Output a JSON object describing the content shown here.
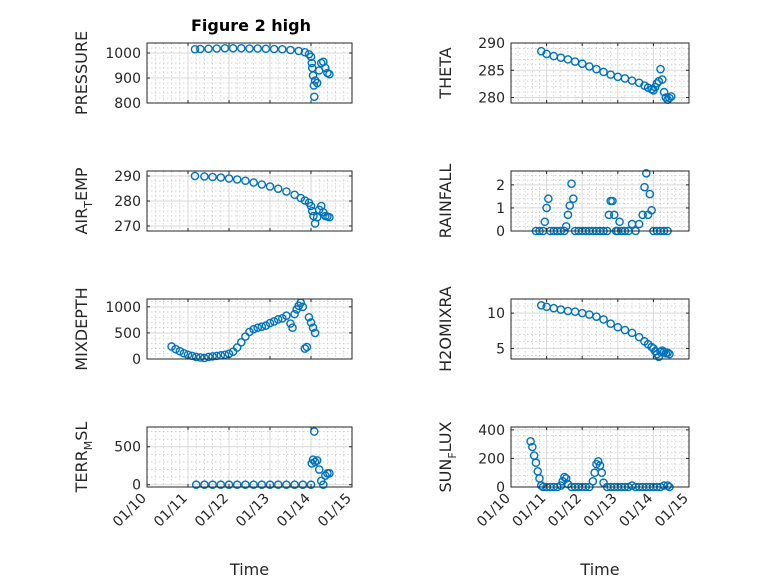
{
  "figure": {
    "title": "Figure 2 high",
    "marker_color": "#0072bd",
    "x_axis_label": "Time"
  },
  "chart_data": [
    {
      "type": "scatter",
      "id": "pressure",
      "ylabel": "PRESSURE",
      "xlim": [
        0,
        5
      ],
      "ylim": [
        800,
        1040
      ],
      "yticks": [
        800,
        900,
        1000
      ],
      "xticks": [
        "01/10",
        "01/11",
        "01/12",
        "01/13",
        "01/14",
        "01/15"
      ],
      "x_tick_labels_shown": false,
      "points": [
        [
          1.17,
          1015
        ],
        [
          1.3,
          1016
        ],
        [
          1.5,
          1017
        ],
        [
          1.7,
          1018
        ],
        [
          1.9,
          1019
        ],
        [
          2.1,
          1019
        ],
        [
          2.3,
          1019
        ],
        [
          2.5,
          1018
        ],
        [
          2.7,
          1018
        ],
        [
          2.9,
          1017
        ],
        [
          3.1,
          1016
        ],
        [
          3.3,
          1015
        ],
        [
          3.5,
          1012
        ],
        [
          3.7,
          1008
        ],
        [
          3.85,
          1003
        ],
        [
          3.95,
          995
        ],
        [
          4.0,
          985
        ],
        [
          4.02,
          960
        ],
        [
          4.03,
          940
        ],
        [
          4.05,
          910
        ],
        [
          4.07,
          870
        ],
        [
          4.08,
          825
        ],
        [
          4.1,
          890
        ],
        [
          4.15,
          880
        ],
        [
          4.2,
          930
        ],
        [
          4.25,
          960
        ],
        [
          4.3,
          965
        ],
        [
          4.35,
          940
        ],
        [
          4.4,
          920
        ],
        [
          4.45,
          915
        ]
      ]
    },
    {
      "type": "scatter",
      "id": "theta",
      "ylabel": "THETA",
      "xlim": [
        0,
        5
      ],
      "ylim": [
        279,
        290
      ],
      "yticks": [
        280,
        285,
        290
      ],
      "xticks": [
        "01/10",
        "01/11",
        "01/12",
        "01/13",
        "01/14",
        "01/15"
      ],
      "x_tick_labels_shown": false,
      "points": [
        [
          0.85,
          288.5
        ],
        [
          1.0,
          288.0
        ],
        [
          1.2,
          287.6
        ],
        [
          1.4,
          287.3
        ],
        [
          1.6,
          287.0
        ],
        [
          1.8,
          286.6
        ],
        [
          2.0,
          286.2
        ],
        [
          2.2,
          285.7
        ],
        [
          2.4,
          285.2
        ],
        [
          2.6,
          284.7
        ],
        [
          2.8,
          284.2
        ],
        [
          3.0,
          283.8
        ],
        [
          3.2,
          283.5
        ],
        [
          3.4,
          283.1
        ],
        [
          3.6,
          282.7
        ],
        [
          3.75,
          282.2
        ],
        [
          3.85,
          281.8
        ],
        [
          3.95,
          281.5
        ],
        [
          4.0,
          281.3
        ],
        [
          4.05,
          281.9
        ],
        [
          4.1,
          282.6
        ],
        [
          4.15,
          283.0
        ],
        [
          4.2,
          285.2
        ],
        [
          4.25,
          283.3
        ],
        [
          4.3,
          281.0
        ],
        [
          4.35,
          280.0
        ],
        [
          4.4,
          279.6
        ],
        [
          4.45,
          279.9
        ],
        [
          4.5,
          280.2
        ]
      ]
    },
    {
      "type": "scatter",
      "id": "air_temp",
      "ylabel": "AIR_TEMP",
      "ylabel_main": "AIR",
      "ylabel_sub": "T",
      "ylabel_rest": "EMP",
      "xlim": [
        0,
        5
      ],
      "ylim": [
        268,
        292
      ],
      "yticks": [
        270,
        280,
        290
      ],
      "xticks": [
        "01/10",
        "01/11",
        "01/12",
        "01/13",
        "01/14",
        "01/15"
      ],
      "x_tick_labels_shown": false,
      "points": [
        [
          1.17,
          290.0
        ],
        [
          1.4,
          289.8
        ],
        [
          1.6,
          289.6
        ],
        [
          1.8,
          289.4
        ],
        [
          2.0,
          289.0
        ],
        [
          2.2,
          288.6
        ],
        [
          2.4,
          288.1
        ],
        [
          2.6,
          287.4
        ],
        [
          2.8,
          286.6
        ],
        [
          3.0,
          285.8
        ],
        [
          3.2,
          284.9
        ],
        [
          3.4,
          283.8
        ],
        [
          3.6,
          282.5
        ],
        [
          3.75,
          281.2
        ],
        [
          3.85,
          280.2
        ],
        [
          3.95,
          279.3
        ],
        [
          4.0,
          278.0
        ],
        [
          4.03,
          276.0
        ],
        [
          4.06,
          274.0
        ],
        [
          4.1,
          271.0
        ],
        [
          4.15,
          273.5
        ],
        [
          4.2,
          276.5
        ],
        [
          4.25,
          278.0
        ],
        [
          4.3,
          275.5
        ],
        [
          4.35,
          274.0
        ],
        [
          4.4,
          273.8
        ],
        [
          4.45,
          273.5
        ]
      ]
    },
    {
      "type": "scatter",
      "id": "rainfall",
      "ylabel": "RAINFALL",
      "xlim": [
        0,
        5
      ],
      "ylim": [
        0,
        2.6
      ],
      "yticks": [
        0,
        1,
        2
      ],
      "xticks": [
        "01/10",
        "01/11",
        "01/12",
        "01/13",
        "01/14",
        "01/15"
      ],
      "x_tick_labels_shown": false,
      "points": [
        [
          0.7,
          0
        ],
        [
          0.8,
          0
        ],
        [
          0.9,
          0
        ],
        [
          0.95,
          0.4
        ],
        [
          1.0,
          1.0
        ],
        [
          1.05,
          1.4
        ],
        [
          1.1,
          0
        ],
        [
          1.2,
          0
        ],
        [
          1.3,
          0
        ],
        [
          1.4,
          0
        ],
        [
          1.5,
          0
        ],
        [
          1.55,
          0.2
        ],
        [
          1.6,
          0.7
        ],
        [
          1.65,
          1.1
        ],
        [
          1.7,
          2.05
        ],
        [
          1.75,
          1.4
        ],
        [
          1.8,
          0
        ],
        [
          1.9,
          0
        ],
        [
          2.0,
          0
        ],
        [
          2.1,
          0
        ],
        [
          2.2,
          0
        ],
        [
          2.3,
          0
        ],
        [
          2.4,
          0
        ],
        [
          2.5,
          0
        ],
        [
          2.6,
          0
        ],
        [
          2.7,
          0
        ],
        [
          2.75,
          0.7
        ],
        [
          2.8,
          1.3
        ],
        [
          2.85,
          1.3
        ],
        [
          2.9,
          0.7
        ],
        [
          2.95,
          0
        ],
        [
          3.0,
          0
        ],
        [
          3.05,
          0.4
        ],
        [
          3.1,
          0
        ],
        [
          3.2,
          0
        ],
        [
          3.3,
          0
        ],
        [
          3.4,
          0.3
        ],
        [
          3.5,
          0
        ],
        [
          3.6,
          0.3
        ],
        [
          3.7,
          0.7
        ],
        [
          3.75,
          1.9
        ],
        [
          3.8,
          2.5
        ],
        [
          3.85,
          0.7
        ],
        [
          3.9,
          1.6
        ],
        [
          3.95,
          0.9
        ],
        [
          4.0,
          0
        ],
        [
          4.1,
          0
        ],
        [
          4.2,
          0
        ],
        [
          4.3,
          0
        ],
        [
          4.4,
          0
        ]
      ]
    },
    {
      "type": "scatter",
      "id": "mixdepth",
      "ylabel": "MIXDEPTH",
      "xlim": [
        0,
        5
      ],
      "ylim": [
        0,
        1150
      ],
      "yticks": [
        0,
        500,
        1000
      ],
      "xticks": [
        "01/10",
        "01/11",
        "01/12",
        "01/13",
        "01/14",
        "01/15"
      ],
      "x_tick_labels_shown": false,
      "points": [
        [
          0.6,
          240
        ],
        [
          0.7,
          190
        ],
        [
          0.8,
          150
        ],
        [
          0.9,
          110
        ],
        [
          1.0,
          80
        ],
        [
          1.1,
          60
        ],
        [
          1.2,
          40
        ],
        [
          1.3,
          30
        ],
        [
          1.4,
          20
        ],
        [
          1.5,
          40
        ],
        [
          1.6,
          50
        ],
        [
          1.7,
          60
        ],
        [
          1.8,
          70
        ],
        [
          1.9,
          80
        ],
        [
          2.0,
          100
        ],
        [
          2.1,
          140
        ],
        [
          2.2,
          220
        ],
        [
          2.3,
          320
        ],
        [
          2.4,
          430
        ],
        [
          2.5,
          520
        ],
        [
          2.6,
          570
        ],
        [
          2.7,
          600
        ],
        [
          2.8,
          620
        ],
        [
          2.9,
          640
        ],
        [
          3.0,
          690
        ],
        [
          3.1,
          720
        ],
        [
          3.2,
          760
        ],
        [
          3.3,
          780
        ],
        [
          3.4,
          830
        ],
        [
          3.5,
          680
        ],
        [
          3.55,
          600
        ],
        [
          3.6,
          860
        ],
        [
          3.65,
          950
        ],
        [
          3.7,
          1020
        ],
        [
          3.75,
          1080
        ],
        [
          3.8,
          1000
        ],
        [
          3.85,
          200
        ],
        [
          3.9,
          230
        ],
        [
          3.95,
          800
        ],
        [
          4.0,
          700
        ],
        [
          4.05,
          600
        ],
        [
          4.1,
          500
        ]
      ]
    },
    {
      "type": "scatter",
      "id": "h2omixra",
      "ylabel": "H2OMIXRA",
      "xlim": [
        0,
        5
      ],
      "ylim": [
        3.5,
        12
      ],
      "yticks": [
        5,
        10
      ],
      "xticks": [
        "01/10",
        "01/11",
        "01/12",
        "01/13",
        "01/14",
        "01/15"
      ],
      "x_tick_labels_shown": false,
      "points": [
        [
          0.85,
          11.1
        ],
        [
          1.0,
          10.9
        ],
        [
          1.2,
          10.7
        ],
        [
          1.4,
          10.5
        ],
        [
          1.6,
          10.3
        ],
        [
          1.8,
          10.2
        ],
        [
          2.0,
          10.0
        ],
        [
          2.2,
          9.8
        ],
        [
          2.4,
          9.5
        ],
        [
          2.6,
          9.1
        ],
        [
          2.8,
          8.5
        ],
        [
          3.0,
          8.0
        ],
        [
          3.2,
          7.6
        ],
        [
          3.4,
          7.2
        ],
        [
          3.6,
          6.6
        ],
        [
          3.75,
          6.0
        ],
        [
          3.85,
          5.6
        ],
        [
          3.95,
          5.2
        ],
        [
          4.0,
          5.0
        ],
        [
          4.05,
          4.6
        ],
        [
          4.1,
          4.2
        ],
        [
          4.15,
          3.8
        ],
        [
          4.2,
          4.5
        ],
        [
          4.25,
          4.7
        ],
        [
          4.3,
          4.5
        ],
        [
          4.35,
          4.3
        ],
        [
          4.4,
          4.4
        ],
        [
          4.45,
          4.2
        ]
      ]
    },
    {
      "type": "scatter",
      "id": "terr_msl",
      "ylabel": "TERR_MSL",
      "ylabel_main": "TERR",
      "ylabel_sub": "M",
      "ylabel_rest": "SL",
      "xlim": [
        0,
        5
      ],
      "ylim": [
        -30,
        760
      ],
      "yticks": [
        0,
        500
      ],
      "xticks": [
        "01/10",
        "01/11",
        "01/12",
        "01/13",
        "01/14",
        "01/15"
      ],
      "x_tick_labels_shown": true,
      "points": [
        [
          1.2,
          0
        ],
        [
          1.4,
          0
        ],
        [
          1.6,
          0
        ],
        [
          1.8,
          0
        ],
        [
          2.0,
          0
        ],
        [
          2.2,
          0
        ],
        [
          2.4,
          0
        ],
        [
          2.6,
          0
        ],
        [
          2.8,
          0
        ],
        [
          3.0,
          0
        ],
        [
          3.2,
          0
        ],
        [
          3.4,
          0
        ],
        [
          3.6,
          0
        ],
        [
          3.8,
          0
        ],
        [
          4.0,
          0
        ],
        [
          4.02,
          280
        ],
        [
          4.05,
          330
        ],
        [
          4.08,
          700
        ],
        [
          4.1,
          300
        ],
        [
          4.15,
          320
        ],
        [
          4.2,
          200
        ],
        [
          4.25,
          50
        ],
        [
          4.3,
          0
        ],
        [
          4.35,
          120
        ],
        [
          4.4,
          150
        ],
        [
          4.45,
          150
        ]
      ]
    },
    {
      "type": "scatter",
      "id": "sun_flux",
      "ylabel": "SUN_FLUX",
      "ylabel_main": "SUN",
      "ylabel_sub": "F",
      "ylabel_rest": "LUX",
      "xlim": [
        0,
        5
      ],
      "ylim": [
        0,
        420
      ],
      "yticks": [
        0,
        200,
        400
      ],
      "xticks": [
        "01/10",
        "01/11",
        "01/12",
        "01/13",
        "01/14",
        "01/15"
      ],
      "x_tick_labels_shown": true,
      "points": [
        [
          0.55,
          320
        ],
        [
          0.6,
          280
        ],
        [
          0.65,
          220
        ],
        [
          0.7,
          170
        ],
        [
          0.75,
          110
        ],
        [
          0.8,
          60
        ],
        [
          0.85,
          10
        ],
        [
          0.9,
          0
        ],
        [
          1.0,
          0
        ],
        [
          1.1,
          0
        ],
        [
          1.2,
          0
        ],
        [
          1.3,
          0
        ],
        [
          1.4,
          10
        ],
        [
          1.45,
          40
        ],
        [
          1.5,
          70
        ],
        [
          1.55,
          60
        ],
        [
          1.6,
          20
        ],
        [
          1.7,
          0
        ],
        [
          1.8,
          0
        ],
        [
          1.9,
          0
        ],
        [
          2.0,
          0
        ],
        [
          2.1,
          0
        ],
        [
          2.2,
          0
        ],
        [
          2.3,
          40
        ],
        [
          2.35,
          100
        ],
        [
          2.4,
          160
        ],
        [
          2.45,
          180
        ],
        [
          2.5,
          150
        ],
        [
          2.55,
          100
        ],
        [
          2.6,
          30
        ],
        [
          2.7,
          0
        ],
        [
          2.8,
          0
        ],
        [
          2.9,
          0
        ],
        [
          3.0,
          0
        ],
        [
          3.1,
          0
        ],
        [
          3.2,
          0
        ],
        [
          3.3,
          0
        ],
        [
          3.4,
          10
        ],
        [
          3.5,
          0
        ],
        [
          3.6,
          0
        ],
        [
          3.7,
          0
        ],
        [
          3.8,
          0
        ],
        [
          3.9,
          0
        ],
        [
          4.0,
          0
        ],
        [
          4.1,
          0
        ],
        [
          4.2,
          0
        ],
        [
          4.3,
          10
        ],
        [
          4.4,
          10
        ],
        [
          4.45,
          0
        ]
      ]
    }
  ]
}
